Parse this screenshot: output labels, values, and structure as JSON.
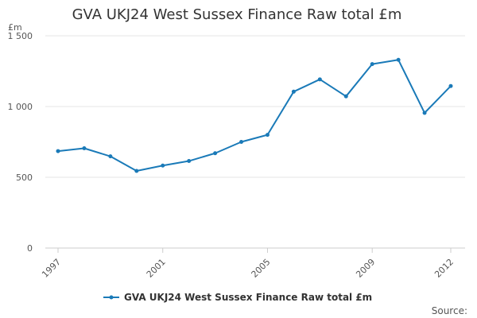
{
  "chart_data": {
    "type": "line",
    "title": "GVA UKJ24 West Sussex Finance Raw total £m",
    "ylabel": "£m",
    "xlabel": "",
    "x": [
      1997,
      1998,
      1999,
      2000,
      2001,
      2002,
      2003,
      2004,
      2005,
      2006,
      2007,
      2008,
      2009,
      2010,
      2011,
      2012
    ],
    "x_tick_values": [
      1997,
      2001,
      2005,
      2009,
      2012
    ],
    "x_tick_labels": [
      "1997",
      "2001",
      "2005",
      "2009",
      "2012"
    ],
    "xlim": [
      1997,
      2012
    ],
    "ylim": [
      0,
      1500
    ],
    "y_tick_values": [
      0,
      500,
      1000,
      1500
    ],
    "y_tick_labels": [
      "0",
      "500",
      "1 000",
      "1 500"
    ],
    "series": [
      {
        "name": "GVA UKJ24 West Sussex Finance Raw total £m",
        "color": "#1a7ab8",
        "values": [
          685,
          705,
          648,
          545,
          583,
          615,
          670,
          750,
          800,
          1105,
          1192,
          1072,
          1300,
          1330,
          955,
          1145
        ]
      }
    ],
    "grid": true,
    "legend_position": "bottom"
  },
  "source_label": "Source:"
}
